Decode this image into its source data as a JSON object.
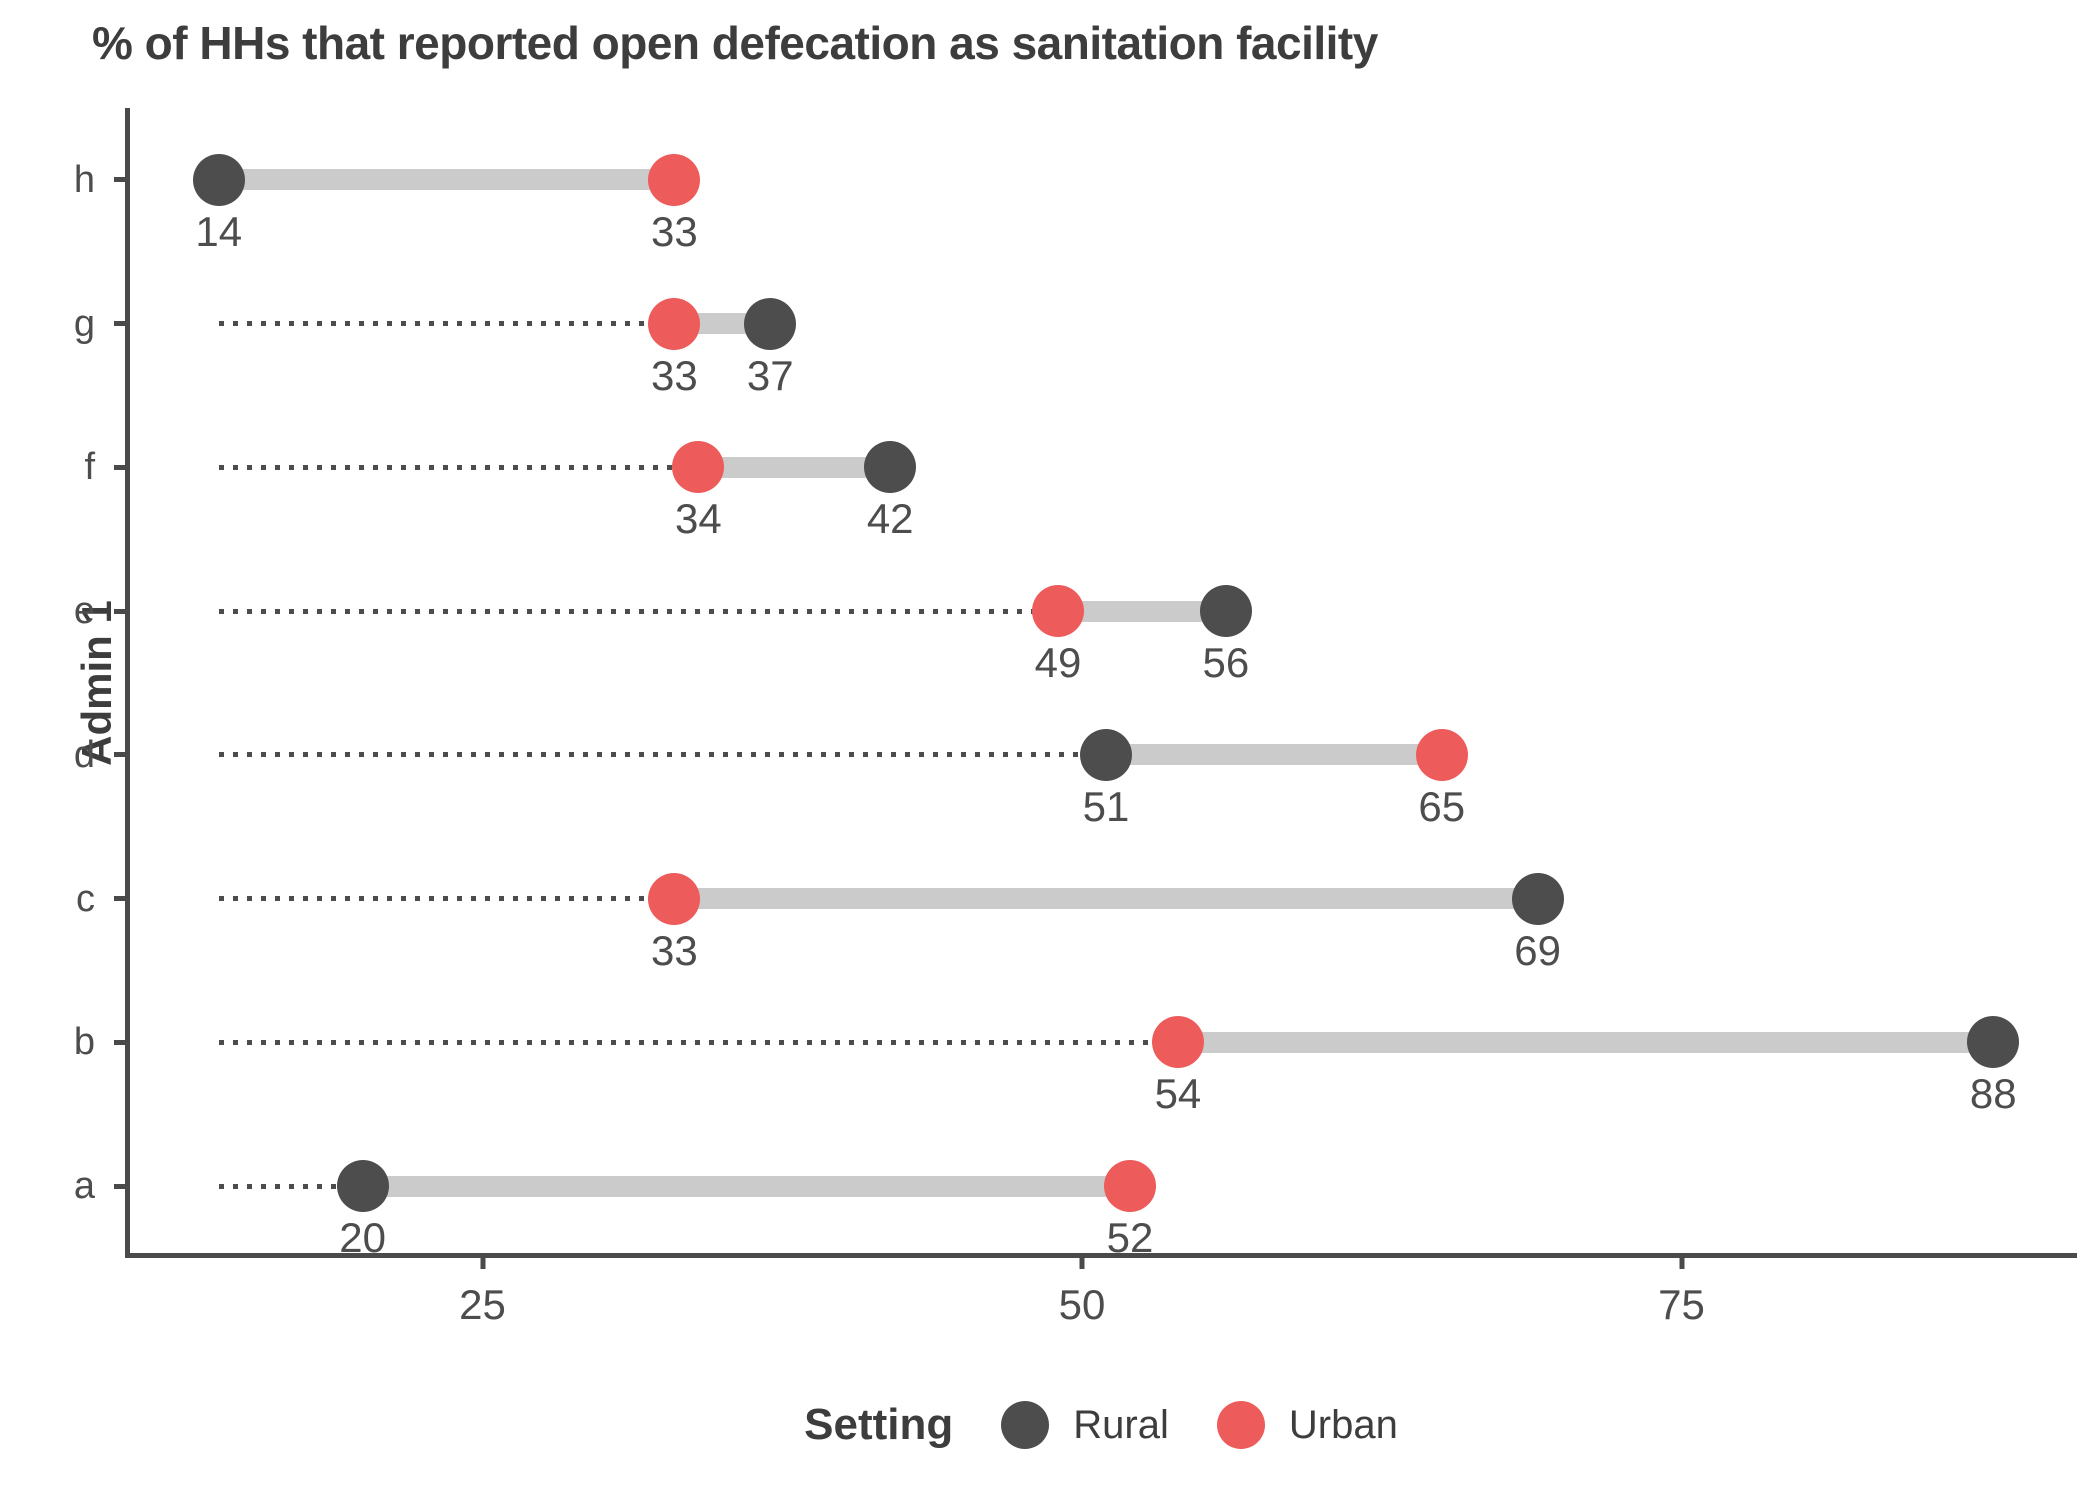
{
  "chart_data": {
    "type": "dumbbell",
    "title": "% of HHs that reported open defecation as sanitation facility",
    "xlabel": "",
    "ylabel": "Admin 1",
    "x_domain": [
      10.3,
      91.7
    ],
    "x_ticks": [
      25,
      50,
      75
    ],
    "grid": false,
    "legend_position": "bottom",
    "leader_line_origin": 14,
    "categories_top_to_bottom": [
      "h",
      "g",
      "f",
      "e",
      "d",
      "c",
      "b",
      "a"
    ],
    "series": [
      {
        "name": "Rural",
        "color": "#4d4d4d",
        "values_by_category": {
          "h": 14,
          "g": 37,
          "f": 42,
          "e": 56,
          "d": 51,
          "c": 69,
          "b": 88,
          "a": 20
        }
      },
      {
        "name": "Urban",
        "color": "#ee5b5b",
        "values_by_category": {
          "h": 33,
          "g": 33,
          "f": 34,
          "e": 49,
          "d": 65,
          "c": 33,
          "b": 54,
          "a": 52
        }
      }
    ],
    "rows": [
      {
        "category": "h",
        "rural": 14,
        "urban": 33
      },
      {
        "category": "g",
        "rural": 37,
        "urban": 33
      },
      {
        "category": "f",
        "rural": 42,
        "urban": 34
      },
      {
        "category": "e",
        "rural": 56,
        "urban": 49
      },
      {
        "category": "d",
        "rural": 51,
        "urban": 65
      },
      {
        "category": "c",
        "rural": 69,
        "urban": 33
      },
      {
        "category": "b",
        "rural": 88,
        "urban": 54
      },
      {
        "category": "a",
        "rural": 20,
        "urban": 52
      }
    ],
    "legend": {
      "title": "Setting",
      "items": [
        {
          "label": "Rural",
          "color": "#4d4d4d"
        },
        {
          "label": "Urban",
          "color": "#ee5b5b"
        }
      ]
    },
    "colors": {
      "rural_dot": "#4d4d4d",
      "urban_dot": "#ee5b5b",
      "connector_bar": "#cbcbcb",
      "leader_line": "#4d4d4d",
      "axis": "#4a4a4a",
      "text": "#3d3d3d",
      "value_label": "#4d4d4d"
    }
  }
}
